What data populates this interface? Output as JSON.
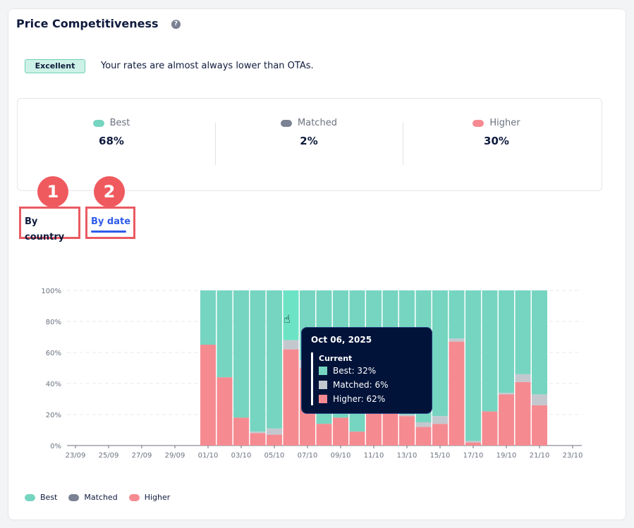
{
  "header": {
    "title": "Price Competitiveness",
    "help_icon": "question-circle-icon"
  },
  "rating": {
    "badge": "Excellent",
    "description": "Your rates are almost always lower than OTAs."
  },
  "colors": {
    "best": "#76d5c0",
    "matched": "#c3c8cf",
    "matched_legend": "#7a8294",
    "higher": "#f58b91",
    "best_hover": "#6de3c6",
    "accent": "#2f5bea",
    "marker": "#ef5a5f"
  },
  "summary": [
    {
      "label": "Best",
      "value": "68%"
    },
    {
      "label": "Matched",
      "value": "2%"
    },
    {
      "label": "Higher",
      "value": "30%"
    }
  ],
  "annotations": [
    "1",
    "2"
  ],
  "tabs": [
    {
      "label": "By country",
      "active": false
    },
    {
      "label": "By date",
      "active": true
    }
  ],
  "tooltip": {
    "date": "Oct 06, 2025",
    "section": "Current",
    "rows": [
      "Best: 32%",
      "Matched: 6%",
      "Higher: 62%"
    ]
  },
  "legend": [
    "Best",
    "Matched",
    "Higher"
  ],
  "chart_data": {
    "type": "bar",
    "stacked": true,
    "grid": true,
    "legend_position": "bottom-left",
    "ylim": [
      0,
      100
    ],
    "y_ticks": [
      "0%",
      "20%",
      "40%",
      "60%",
      "80%",
      "100%"
    ],
    "x_ticks": [
      "23/09",
      "25/09",
      "27/09",
      "29/09",
      "01/10",
      "03/10",
      "05/10",
      "07/10",
      "09/10",
      "11/10",
      "13/10",
      "15/10",
      "17/10",
      "19/10",
      "21/10",
      "23/10"
    ],
    "categories": [
      "01/10",
      "02/10",
      "03/10",
      "04/10",
      "05/10",
      "06/10",
      "07/10",
      "08/10",
      "09/10",
      "10/10",
      "11/10",
      "12/10",
      "13/10",
      "14/10",
      "15/10",
      "16/10",
      "17/10",
      "18/10",
      "19/10",
      "20/10",
      "21/10"
    ],
    "series": [
      {
        "name": "Higher",
        "values": [
          65,
          44,
          18,
          8,
          7,
          62,
          50,
          14,
          18,
          9,
          25,
          25,
          19,
          12,
          14,
          67,
          2,
          22,
          33,
          41,
          26
        ]
      },
      {
        "name": "Matched",
        "values": [
          0,
          0,
          0,
          1,
          4,
          6,
          5,
          0,
          0,
          0,
          0,
          0,
          1,
          3,
          5,
          2,
          1,
          0,
          1,
          5,
          7
        ]
      },
      {
        "name": "Best",
        "values": [
          35,
          56,
          82,
          91,
          89,
          32,
          45,
          86,
          82,
          91,
          75,
          75,
          80,
          85,
          81,
          31,
          97,
          78,
          66,
          54,
          67
        ]
      }
    ],
    "highlighted": "06/10"
  }
}
